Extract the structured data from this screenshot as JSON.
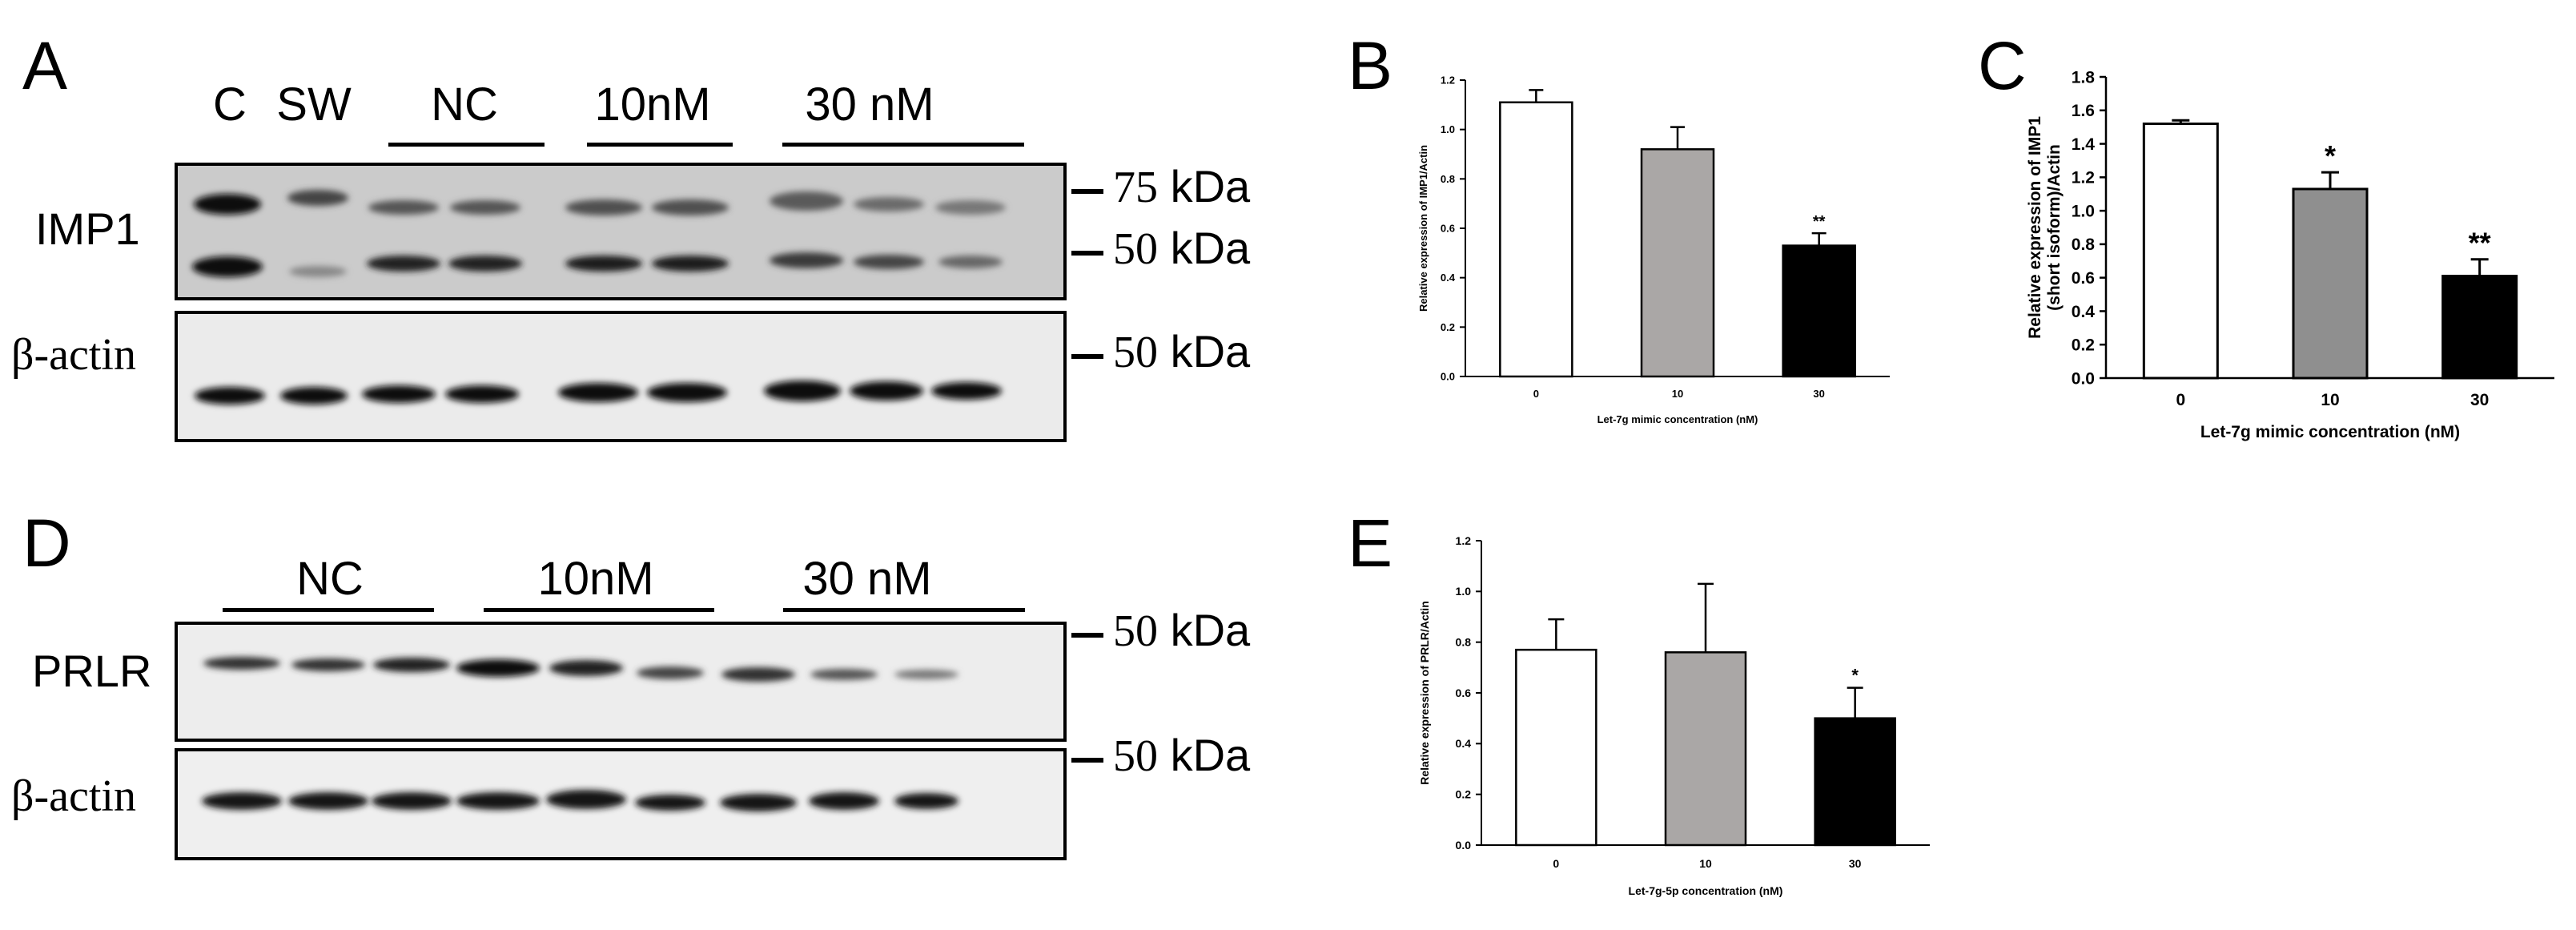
{
  "panels": {
    "A": {
      "letter": "A",
      "lane_labels": [
        "C",
        "SW",
        "NC",
        "10nM",
        "30 nM"
      ],
      "rows": [
        {
          "label": "IMP1",
          "markers": [
            {
              "num": "75",
              "unit": "kDa"
            },
            {
              "num": "50",
              "unit": "kDa"
            }
          ]
        },
        {
          "label": "β-actin",
          "markers": [
            {
              "num": "50",
              "unit": "kDa"
            }
          ]
        }
      ]
    },
    "D": {
      "letter": "D",
      "lane_labels": [
        "NC",
        "10nM",
        "30 nM"
      ],
      "rows": [
        {
          "label": "PRLR",
          "markers": [
            {
              "num": "50",
              "unit": "kDa"
            }
          ]
        },
        {
          "label": "β-actin",
          "markers": [
            {
              "num": "50",
              "unit": "kDa"
            }
          ]
        }
      ]
    },
    "B": {
      "letter": "B"
    },
    "C": {
      "letter": "C"
    },
    "E": {
      "letter": "E"
    }
  },
  "chart_data": [
    {
      "panel": "B",
      "type": "bar",
      "categories": [
        "0",
        "10",
        "30"
      ],
      "values": [
        1.11,
        0.92,
        0.53
      ],
      "errors": [
        0.05,
        0.09,
        0.05
      ],
      "significance": [
        "",
        "",
        "**"
      ],
      "colors": [
        "#ffffff",
        "#aaa7a6",
        "#000000"
      ],
      "ylabel": "Relative expression of IMP1/Actin",
      "xlabel": "Let-7g mimic concentration (nM)",
      "ylim": [
        0,
        1.2
      ],
      "yticks": [
        "0.0",
        "0.2",
        "0.4",
        "0.6",
        "0.8",
        "1.0",
        "1.2"
      ],
      "grid": false
    },
    {
      "panel": "C",
      "type": "bar",
      "categories": [
        "0",
        "10",
        "30"
      ],
      "values": [
        1.52,
        1.13,
        0.61
      ],
      "errors": [
        0.02,
        0.1,
        0.1
      ],
      "significance": [
        "",
        "*",
        "**"
      ],
      "colors": [
        "#ffffff",
        "#8f8f8f",
        "#000000"
      ],
      "ylabel": "Relative expression of IMP1 (short isoform)/Actin",
      "ylabel_lines": [
        "Relative expression of IMP1",
        "(short isoform)/Actin"
      ],
      "xlabel": "Let-7g mimic  concentration (nM)",
      "ylim": [
        0,
        1.8
      ],
      "yticks": [
        "0.0",
        "0.2",
        "0.4",
        "0.6",
        "0.8",
        "1.0",
        "1.2",
        "1.4",
        "1.6",
        "1.8"
      ],
      "grid": false
    },
    {
      "panel": "E",
      "type": "bar",
      "categories": [
        "0",
        "10",
        "30"
      ],
      "values": [
        0.77,
        0.76,
        0.5
      ],
      "errors": [
        0.12,
        0.27,
        0.12
      ],
      "significance": [
        "",
        "",
        "*"
      ],
      "colors": [
        "#ffffff",
        "#aaa7a6",
        "#000000"
      ],
      "ylabel": "Relative expression of PRLR/Actin",
      "xlabel": "Let-7g-5p concentration (nM)",
      "ylim": [
        0,
        1.2
      ],
      "yticks": [
        "0.0",
        "0.2",
        "0.4",
        "0.6",
        "0.8",
        "1.0",
        "1.2"
      ],
      "grid": false
    }
  ]
}
